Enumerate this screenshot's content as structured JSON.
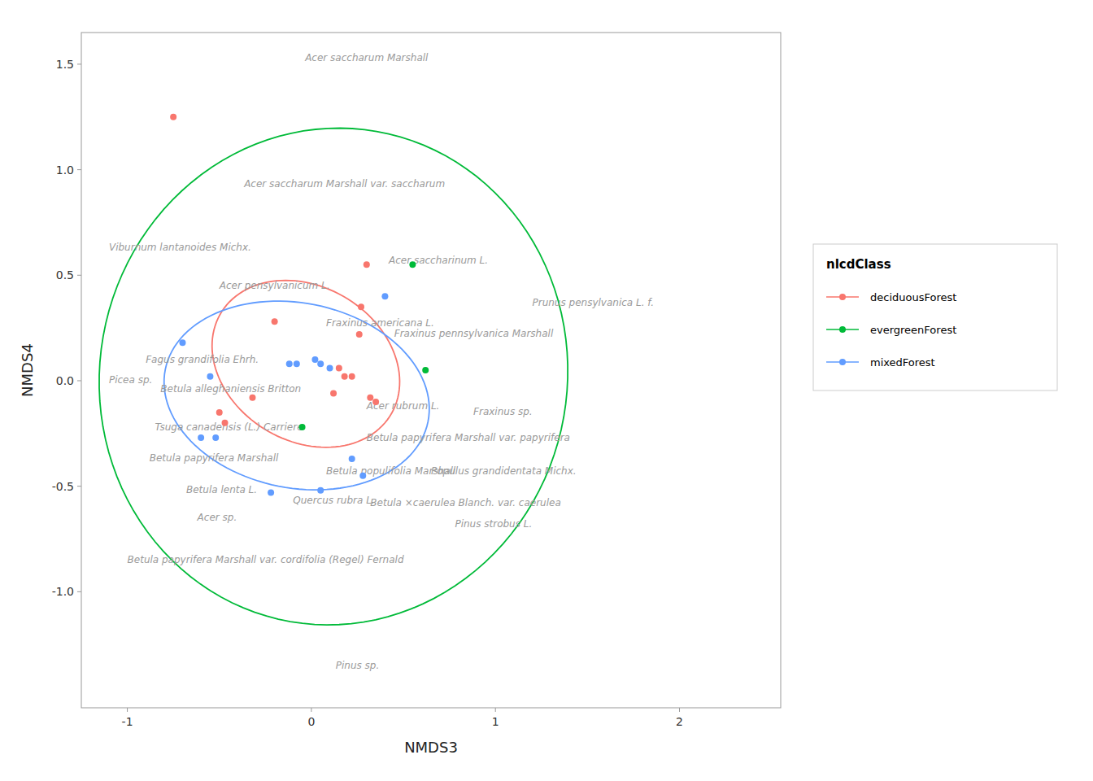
{
  "chart_data": {
    "type": "scatter",
    "xlabel": "NMDS3",
    "ylabel": "NMDS4",
    "xlim": [
      -1.25,
      2.55
    ],
    "ylim": [
      -1.55,
      1.65
    ],
    "xticks": [
      -1,
      0,
      1,
      2
    ],
    "yticks": [
      {
        "value": -1.0,
        "label": "-1.0"
      },
      -0.5,
      {
        "value": 0.0,
        "label": "0.0"
      },
      0.5,
      {
        "value": 1.0,
        "label": "1.0"
      },
      1.5
    ],
    "grid": false,
    "legend": "right",
    "legend_title": "nlcdClass",
    "series": [
      {
        "name": "deciduousForest",
        "color": "#F8766D",
        "x": [
          -0.75,
          -0.2,
          -0.32,
          -0.5,
          -0.47,
          0.18,
          0.15,
          0.12,
          0.27,
          0.35,
          0.22,
          0.3,
          0.32,
          0.26
        ],
        "values": [
          1.25,
          0.28,
          -0.08,
          -0.15,
          -0.2,
          0.02,
          0.06,
          -0.06,
          0.35,
          -0.1,
          0.02,
          0.55,
          -0.08,
          0.22
        ],
        "ellipse": {
          "cx": -0.03,
          "cy": 0.08,
          "width": 1.05,
          "height": 0.75,
          "angle": -20
        }
      },
      {
        "name": "evergreenForest",
        "color": "#00BA38",
        "x": [
          0.55,
          0.62,
          -0.05
        ],
        "values": [
          0.55,
          0.05,
          -0.22
        ],
        "ellipse": {
          "cx": 0.12,
          "cy": 0.02,
          "width": 2.55,
          "height": 2.35,
          "angle": 8
        }
      },
      {
        "name": "mixedForest",
        "color": "#619CFF",
        "x": [
          -0.7,
          -0.55,
          -0.6,
          -0.52,
          -0.12,
          -0.08,
          0.02,
          0.05,
          0.1,
          0.4,
          0.22,
          0.28,
          0.05,
          -0.22
        ],
        "values": [
          0.18,
          0.02,
          -0.27,
          -0.27,
          0.08,
          0.08,
          0.1,
          0.08,
          0.06,
          0.4,
          -0.37,
          -0.45,
          -0.52,
          -0.53
        ],
        "ellipse": {
          "cx": -0.08,
          "cy": -0.07,
          "width": 1.45,
          "height": 0.88,
          "angle": -8
        }
      }
    ],
    "annotations": [
      {
        "text": "Acer saccharum Marshall",
        "x": 0.3,
        "y": 1.53,
        "align": "center"
      },
      {
        "text": "Acer saccharum Marshall var. saccharum",
        "x": 0.18,
        "y": 0.93,
        "align": "center"
      },
      {
        "text": "Viburnum lantanoides Michx.",
        "x": -1.1,
        "y": 0.63,
        "align": "left"
      },
      {
        "text": "Acer saccharinum L.",
        "x": 0.42,
        "y": 0.57,
        "align": "left"
      },
      {
        "text": "Acer pensylvanicum L.",
        "x": -0.5,
        "y": 0.45,
        "align": "left"
      },
      {
        "text": "Prunus pensylvanica L. f.",
        "x": 1.2,
        "y": 0.37,
        "align": "left"
      },
      {
        "text": "Fraxinus americana L.",
        "x": 0.08,
        "y": 0.27,
        "align": "left"
      },
      {
        "text": "Fraxinus pennsylvanica Marshall",
        "x": 0.45,
        "y": 0.22,
        "align": "left"
      },
      {
        "text": "Fagus grandifolia Ehrh.",
        "x": -0.9,
        "y": 0.1,
        "align": "left"
      },
      {
        "text": "Picea sp.",
        "x": -1.1,
        "y": 0.0,
        "align": "left"
      },
      {
        "text": "Betula alleghaniensis Britton",
        "x": -0.82,
        "y": -0.04,
        "align": "left"
      },
      {
        "text": "Acer rubrum L.",
        "x": 0.3,
        "y": -0.12,
        "align": "left"
      },
      {
        "text": "Fraxinus sp.",
        "x": 0.88,
        "y": -0.15,
        "align": "left"
      },
      {
        "text": "Tsuga canadensis (L.) Carriere",
        "x": -0.85,
        "y": -0.22,
        "align": "left"
      },
      {
        "text": "Betula papyrifera Marshall var. papyrifera",
        "x": 0.3,
        "y": -0.27,
        "align": "left"
      },
      {
        "text": "Betula papyrifera Marshall",
        "x": -0.88,
        "y": -0.37,
        "align": "left"
      },
      {
        "text": "Betula populifolia Marshall",
        "x": 0.08,
        "y": -0.43,
        "align": "left"
      },
      {
        "text": "Populus grandidentata Michx.",
        "x": 0.65,
        "y": -0.43,
        "align": "left"
      },
      {
        "text": "Betula lenta L.",
        "x": -0.68,
        "y": -0.52,
        "align": "left"
      },
      {
        "text": "Quercus rubra L.",
        "x": -0.1,
        "y": -0.57,
        "align": "left"
      },
      {
        "text": "Betula ×caerulea Blanch. var. caerulea",
        "x": 0.32,
        "y": -0.58,
        "align": "left"
      },
      {
        "text": "Acer sp.",
        "x": -0.62,
        "y": -0.65,
        "align": "left"
      },
      {
        "text": "Pinus strobus L.",
        "x": 0.78,
        "y": -0.68,
        "align": "left"
      },
      {
        "text": "Betula papyrifera Marshall var. cordifolia (Regel) Fernald",
        "x": -1.0,
        "y": -0.85,
        "align": "left"
      },
      {
        "text": "Pinus sp.",
        "x": 0.25,
        "y": -1.35,
        "align": "center"
      }
    ]
  }
}
